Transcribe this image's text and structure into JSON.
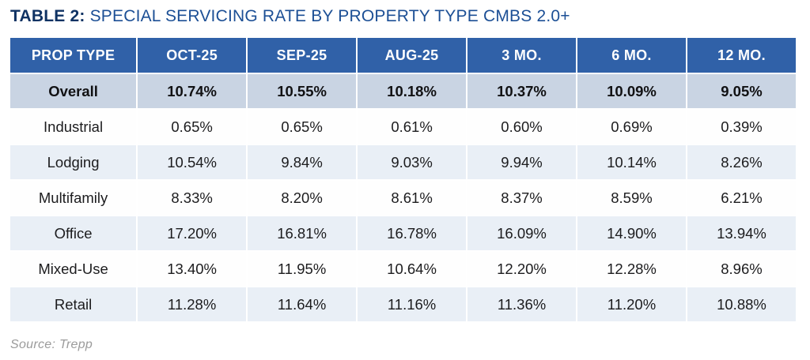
{
  "title": {
    "prefix": "TABLE 2:",
    "text": " SPECIAL SERVICING RATE BY PROPERTY TYPE CMBS 2.0+"
  },
  "source": "Source: Trepp",
  "colors": {
    "header_bg": "#3061a8",
    "header_text": "#ffffff",
    "emphasis_row_bg": "#c9d4e3",
    "stripe_row_bg": "#e9eff6",
    "white_row_bg": "#fefefe",
    "title_prefix": "#0f3263",
    "title_text": "#1c4f95",
    "cell_text": "#1c1c1e",
    "source_text": "#9b9b9b"
  },
  "chart_data": {
    "type": "table",
    "title": "TABLE 2: SPECIAL SERVICING RATE BY PROPERTY TYPE CMBS 2.0+",
    "columns": [
      "PROP TYPE",
      "OCT-25",
      "SEP-25",
      "AUG-25",
      "3 MO.",
      "6 MO.",
      "12 MO."
    ],
    "rows": [
      {
        "label": "Overall",
        "emphasis": true,
        "values": [
          "10.74%",
          "10.55%",
          "10.18%",
          "10.37%",
          "10.09%",
          "9.05%"
        ]
      },
      {
        "label": "Industrial",
        "emphasis": false,
        "values": [
          "0.65%",
          "0.65%",
          "0.61%",
          "0.60%",
          "0.69%",
          "0.39%"
        ]
      },
      {
        "label": "Lodging",
        "emphasis": false,
        "values": [
          "10.54%",
          "9.84%",
          "9.03%",
          "9.94%",
          "10.14%",
          "8.26%"
        ]
      },
      {
        "label": "Multifamily",
        "emphasis": false,
        "values": [
          "8.33%",
          "8.20%",
          "8.61%",
          "8.37%",
          "8.59%",
          "6.21%"
        ]
      },
      {
        "label": "Office",
        "emphasis": false,
        "values": [
          "17.20%",
          "16.81%",
          "16.78%",
          "16.09%",
          "14.90%",
          "13.94%"
        ]
      },
      {
        "label": "Mixed-Use",
        "emphasis": false,
        "values": [
          "13.40%",
          "11.95%",
          "10.64%",
          "12.20%",
          "12.28%",
          "8.96%"
        ]
      },
      {
        "label": "Retail",
        "emphasis": false,
        "values": [
          "11.28%",
          "11.64%",
          "11.16%",
          "11.36%",
          "11.20%",
          "10.88%"
        ]
      }
    ]
  }
}
